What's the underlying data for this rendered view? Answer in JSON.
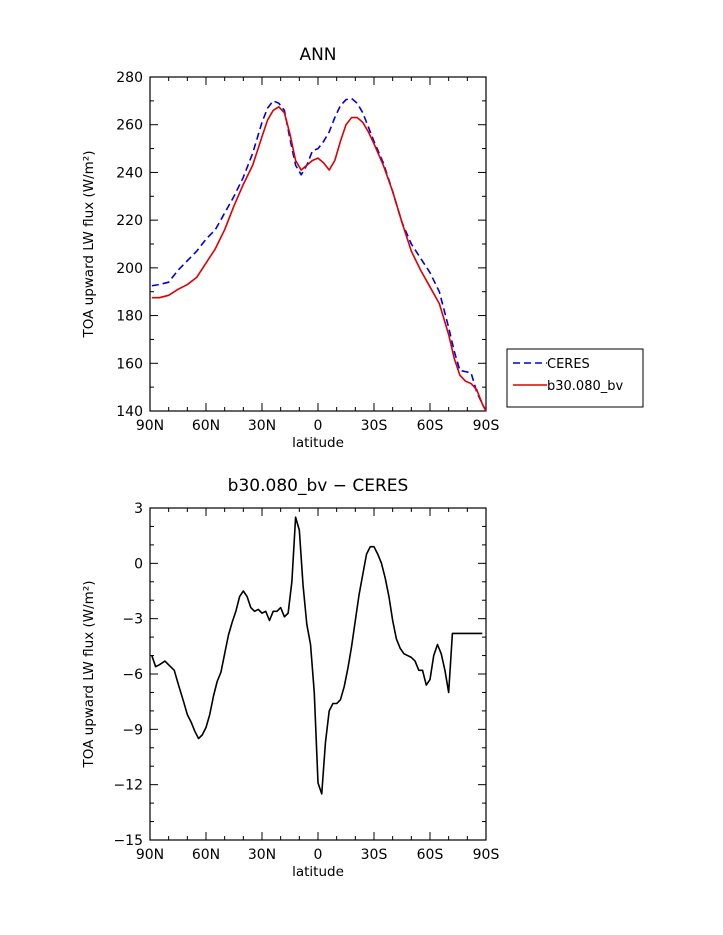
{
  "chart_data": [
    {
      "type": "line",
      "title": "ANN",
      "xlabel": "latitude",
      "ylabel": "TOA upward LW flux (W/m²)",
      "xlim": [
        90,
        -90
      ],
      "ylim": [
        140,
        280
      ],
      "xticks": [
        {
          "value": 90,
          "label": "90N"
        },
        {
          "value": 60,
          "label": "60N"
        },
        {
          "value": 30,
          "label": "30N"
        },
        {
          "value": 0,
          "label": "0"
        },
        {
          "value": -30,
          "label": "30S"
        },
        {
          "value": -60,
          "label": "60S"
        },
        {
          "value": -90,
          "label": "90S"
        }
      ],
      "yticks": [
        {
          "value": 140,
          "label": "140"
        },
        {
          "value": 160,
          "label": "160"
        },
        {
          "value": 180,
          "label": "180"
        },
        {
          "value": 200,
          "label": "200"
        },
        {
          "value": 220,
          "label": "220"
        },
        {
          "value": 240,
          "label": "240"
        },
        {
          "value": 260,
          "label": "260"
        },
        {
          "value": 280,
          "label": "280"
        }
      ],
      "legend": "right",
      "series": [
        {
          "name": "CERES",
          "color": "#0000dd",
          "dash": "dashed",
          "x": [
            89,
            85,
            80,
            75,
            70,
            65,
            60,
            55,
            50,
            45,
            40,
            35,
            30,
            27,
            24,
            21,
            18,
            15,
            12,
            9,
            6,
            3,
            0,
            -3,
            -6,
            -9,
            -12,
            -15,
            -18,
            -21,
            -24,
            -27,
            -30,
            -35,
            -40,
            -45,
            -50,
            -55,
            -60,
            -65,
            -70,
            -73,
            -76,
            -79,
            -82,
            -85,
            -88,
            -90
          ],
          "y": [
            192.5,
            193,
            194,
            199,
            203,
            207,
            212,
            216,
            223,
            230,
            238,
            248,
            261,
            267,
            270,
            269,
            266,
            254,
            243,
            239,
            243,
            249,
            250,
            253,
            257,
            263,
            268,
            270.5,
            271,
            269,
            265,
            259,
            253,
            244,
            232,
            219,
            210,
            204,
            198,
            190,
            175,
            165,
            157,
            156.5,
            156,
            148,
            143,
            140
          ]
        },
        {
          "name": "b30.080_bv",
          "color": "#dd0000",
          "dash": "solid",
          "x": [
            89,
            85,
            80,
            75,
            70,
            65,
            60,
            55,
            50,
            45,
            40,
            35,
            30,
            27,
            24,
            21,
            18,
            15,
            12,
            9,
            6,
            3,
            0,
            -3,
            -6,
            -9,
            -12,
            -15,
            -18,
            -21,
            -24,
            -27,
            -30,
            -35,
            -40,
            -45,
            -50,
            -55,
            -60,
            -65,
            -70,
            -73,
            -76,
            -79,
            -82,
            -85,
            -88,
            -90
          ],
          "y": [
            187.5,
            187.5,
            188.5,
            191,
            193,
            196,
            202,
            208,
            216,
            226,
            235,
            243,
            255,
            262,
            266,
            267.5,
            265,
            256,
            245,
            241,
            243,
            245,
            246,
            244,
            241,
            245,
            253,
            260,
            263,
            263,
            261,
            257,
            252,
            243,
            232,
            219,
            207,
            199,
            192,
            185,
            172,
            162,
            155,
            152.5,
            151.5,
            149,
            143,
            140
          ]
        }
      ]
    },
    {
      "type": "line",
      "title": "b30.080_bv − CERES",
      "xlabel": "latitude",
      "ylabel": "TOA upward LW flux (W/m²)",
      "xlim": [
        90,
        -90
      ],
      "ylim": [
        -15,
        3
      ],
      "xticks": [
        {
          "value": 90,
          "label": "90N"
        },
        {
          "value": 60,
          "label": "60N"
        },
        {
          "value": 30,
          "label": "30N"
        },
        {
          "value": 0,
          "label": "0"
        },
        {
          "value": -30,
          "label": "30S"
        },
        {
          "value": -60,
          "label": "60S"
        },
        {
          "value": -90,
          "label": "90S"
        }
      ],
      "yticks": [
        {
          "value": 3,
          "label": "3"
        },
        {
          "value": 0,
          "label": "0"
        },
        {
          "value": -3,
          "label": "−3"
        },
        {
          "value": -6,
          "label": "−6"
        },
        {
          "value": -9,
          "label": "−9"
        },
        {
          "value": -12,
          "label": "−12"
        },
        {
          "value": -15,
          "label": "−15"
        }
      ],
      "series": [
        {
          "color": "#000000",
          "dash": "solid",
          "x": [
            89,
            87,
            85,
            82,
            80,
            77,
            75,
            72,
            70,
            68,
            66,
            64,
            62,
            60,
            58,
            56,
            54,
            52,
            50,
            48,
            46,
            44,
            42,
            40,
            38,
            36,
            34,
            32,
            30,
            28,
            26,
            24,
            22,
            20,
            18,
            16,
            14,
            12,
            10,
            8,
            6,
            4,
            2,
            0,
            -2,
            -4,
            -6,
            -8,
            -10,
            -12,
            -14,
            -16,
            -18,
            -20,
            -22,
            -24,
            -26,
            -28,
            -30,
            -32,
            -34,
            -36,
            -38,
            -40,
            -42,
            -44,
            -46,
            -48,
            -50,
            -52,
            -54,
            -56,
            -58,
            -60,
            -62,
            -64,
            -66,
            -68,
            -70,
            -72,
            -74,
            -76,
            -78,
            -80,
            -82,
            -84,
            -86,
            -88
          ],
          "y": [
            -5.0,
            -5.6,
            -5.5,
            -5.3,
            -5.5,
            -5.8,
            -6.5,
            -7.5,
            -8.2,
            -8.6,
            -9.1,
            -9.5,
            -9.3,
            -8.9,
            -8.2,
            -7.2,
            -6.4,
            -5.9,
            -4.9,
            -3.9,
            -3.2,
            -2.6,
            -1.8,
            -1.5,
            -1.8,
            -2.4,
            -2.6,
            -2.5,
            -2.7,
            -2.6,
            -3.1,
            -2.6,
            -2.6,
            -2.4,
            -2.9,
            -2.7,
            -1.0,
            2.5,
            1.8,
            -1.2,
            -3.3,
            -4.4,
            -7.0,
            -11.9,
            -12.5,
            -9.7,
            -8.0,
            -7.6,
            -7.6,
            -7.4,
            -6.7,
            -5.7,
            -4.5,
            -3.1,
            -1.7,
            -0.6,
            0.5,
            0.9,
            0.9,
            0.5,
            0.0,
            -0.8,
            -1.8,
            -3.1,
            -4.1,
            -4.6,
            -4.9,
            -5.0,
            -5.1,
            -5.3,
            -5.8,
            -5.8,
            -6.6,
            -6.3,
            -5.0,
            -4.4,
            -4.9,
            -5.8,
            -7.0,
            -3.8,
            -3.8,
            -3.8,
            -3.8,
            -3.8,
            -3.8,
            -3.8,
            -3.8,
            -3.8
          ]
        }
      ]
    }
  ]
}
